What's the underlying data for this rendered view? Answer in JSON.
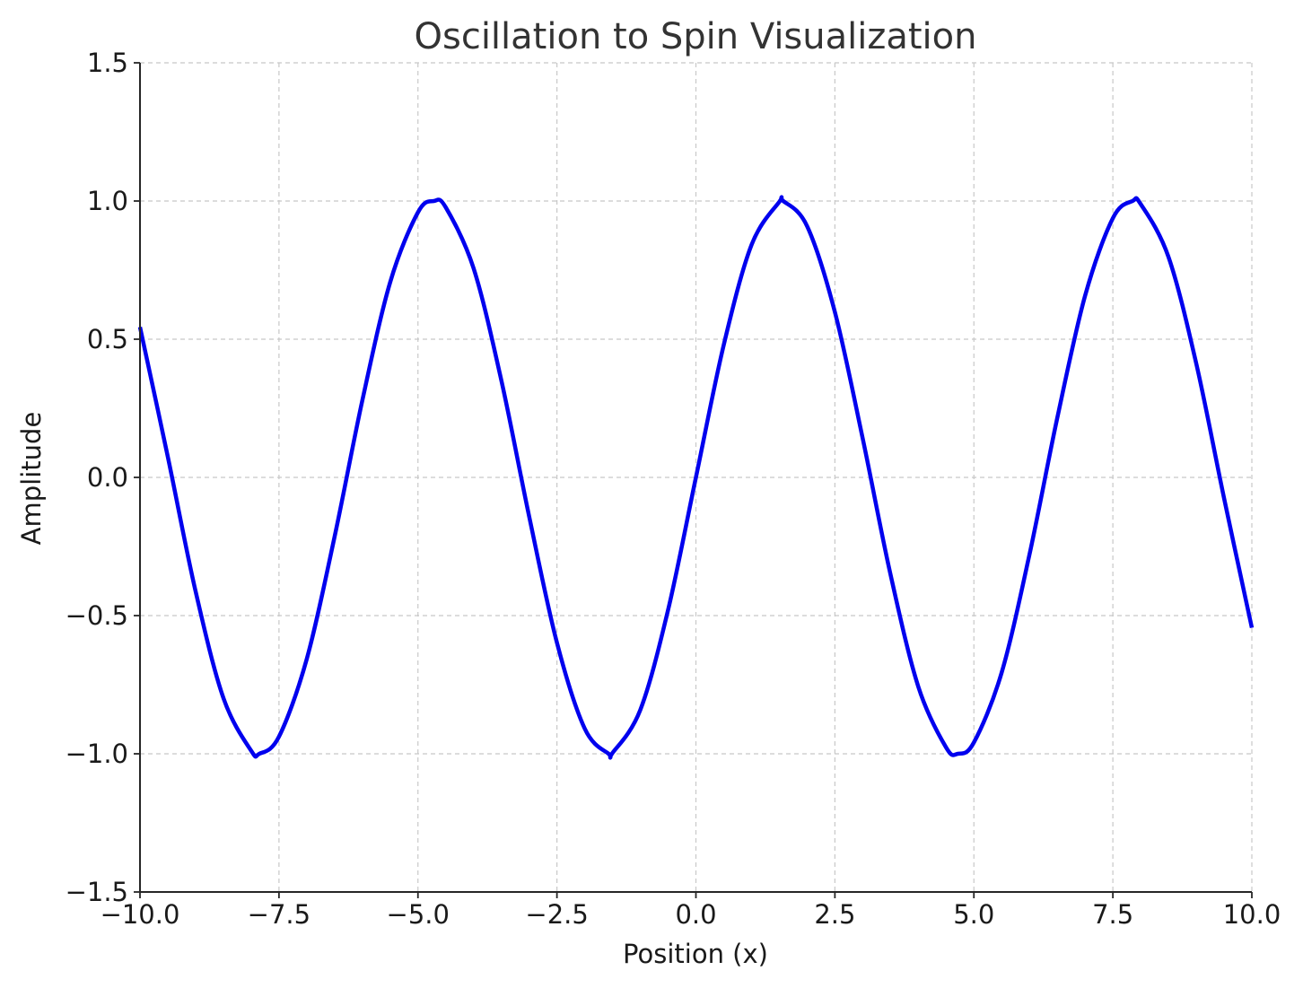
{
  "chart_data": {
    "type": "line",
    "title": "Oscillation to Spin Visualization",
    "xlabel": "Position (x)",
    "ylabel": "Amplitude",
    "xlim": [
      -10,
      10
    ],
    "ylim": [
      -1.5,
      1.5
    ],
    "xticks": [
      -10,
      -7.5,
      -5,
      -2.5,
      0,
      2.5,
      5,
      7.5,
      10
    ],
    "xtick_labels": [
      "−10.0",
      "−7.5",
      "−5.0",
      "−2.5",
      "0.0",
      "2.5",
      "5.0",
      "7.5",
      "10.0"
    ],
    "yticks": [
      -1.5,
      -1.0,
      -0.5,
      0,
      0.5,
      1.0,
      1.5
    ],
    "ytick_labels": [
      "−1.5",
      "−1.0",
      "−0.5",
      "0.0",
      "0.5",
      "1.0",
      "1.5"
    ],
    "grid": true,
    "series": [
      {
        "color": "#0000ee",
        "x": [
          -10.0,
          -9.5,
          -9.0,
          -8.5,
          -8.0,
          -7.854,
          -7.5,
          -7.0,
          -6.5,
          -6.0,
          -5.5,
          -5.0,
          -4.712,
          -4.5,
          -4.0,
          -3.5,
          -3.0,
          -2.5,
          -2.0,
          -1.571,
          -1.5,
          -1.0,
          -0.5,
          0.0,
          0.5,
          1.0,
          1.5,
          1.571,
          2.0,
          2.5,
          3.0,
          3.5,
          4.0,
          4.5,
          4.712,
          5.0,
          5.5,
          6.0,
          6.5,
          7.0,
          7.5,
          7.854,
          8.0,
          8.5,
          9.0,
          9.5,
          10.0
        ],
        "y": [
          0.544,
          0.075,
          -0.412,
          -0.798,
          -0.989,
          -1.0,
          -0.938,
          -0.657,
          -0.215,
          0.279,
          0.706,
          0.959,
          1.0,
          0.977,
          0.757,
          0.351,
          -0.141,
          -0.598,
          -0.909,
          -1.0,
          -0.997,
          -0.841,
          -0.479,
          0.0,
          0.479,
          0.841,
          0.997,
          1.0,
          0.909,
          0.598,
          0.141,
          -0.351,
          -0.757,
          -0.977,
          -1.0,
          -0.959,
          -0.706,
          -0.279,
          0.215,
          0.657,
          0.938,
          1.0,
          0.989,
          0.798,
          0.412,
          -0.075,
          -0.544
        ]
      }
    ]
  }
}
